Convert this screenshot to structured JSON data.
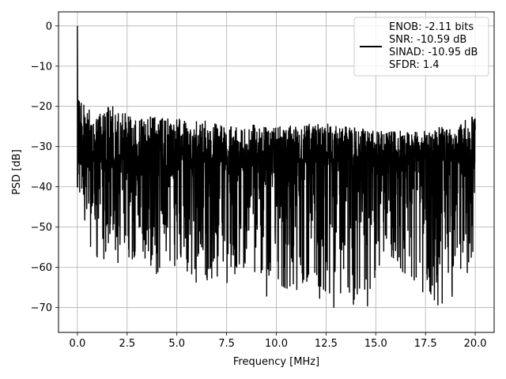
{
  "chart_data": {
    "type": "line",
    "title": "",
    "xlabel": "Frequency [MHz]",
    "ylabel": "PSD [dB]",
    "xlim": [
      -0.95,
      20.95
    ],
    "ylim": [
      -76.2,
      3.5
    ],
    "xticks": [
      0.0,
      2.5,
      5.0,
      7.5,
      10.0,
      12.5,
      15.0,
      17.5,
      20.0
    ],
    "xtick_labels": [
      "0.0",
      "2.5",
      "5.0",
      "7.5",
      "10.0",
      "12.5",
      "15.0",
      "17.5",
      "20.0"
    ],
    "yticks": [
      0,
      -10,
      -20,
      -30,
      -40,
      -50,
      -60,
      -70
    ],
    "ytick_labels": [
      "0",
      "−10",
      "−20",
      "−30",
      "−40",
      "−50",
      "−60",
      "−70"
    ],
    "grid": true,
    "legend_position": "top-right",
    "series": [
      {
        "color": "#000000",
        "x_range": [
          0.0,
          20.0
        ],
        "peak": {
          "x": 0.0,
          "y": 0.0
        },
        "upper_envelope": [
          [
            0.0,
            -14
          ],
          [
            0.2,
            -17
          ],
          [
            0.5,
            -20
          ],
          [
            1.0,
            -22
          ],
          [
            1.5,
            -19
          ],
          [
            2.5,
            -22
          ],
          [
            5.0,
            -23
          ],
          [
            7.5,
            -24
          ],
          [
            10.0,
            -25
          ],
          [
            12.5,
            -24
          ],
          [
            15.0,
            -26
          ],
          [
            17.5,
            -26
          ],
          [
            20.0,
            -22
          ]
        ],
        "lower_envelope": [
          [
            0.0,
            -40
          ],
          [
            0.3,
            -45
          ],
          [
            0.5,
            -55
          ],
          [
            1.2,
            -60
          ],
          [
            2.0,
            -61
          ],
          [
            3.2,
            -59
          ],
          [
            4.0,
            -63
          ],
          [
            5.0,
            -60
          ],
          [
            6.5,
            -67
          ],
          [
            8.7,
            -61
          ],
          [
            9.7,
            -69
          ],
          [
            11.0,
            -66
          ],
          [
            13.3,
            -71
          ],
          [
            14.5,
            -71
          ],
          [
            15.5,
            -58
          ],
          [
            18.5,
            -72
          ],
          [
            20.0,
            -66
          ]
        ],
        "median_level": -36
      }
    ],
    "legend": {
      "lines": [
        "ENOB: -2.11 bits",
        "SNR: -10.59 dB",
        "SINAD: -10.95 dB",
        "SFDR: 1.4"
      ],
      "color": "#000000"
    }
  }
}
